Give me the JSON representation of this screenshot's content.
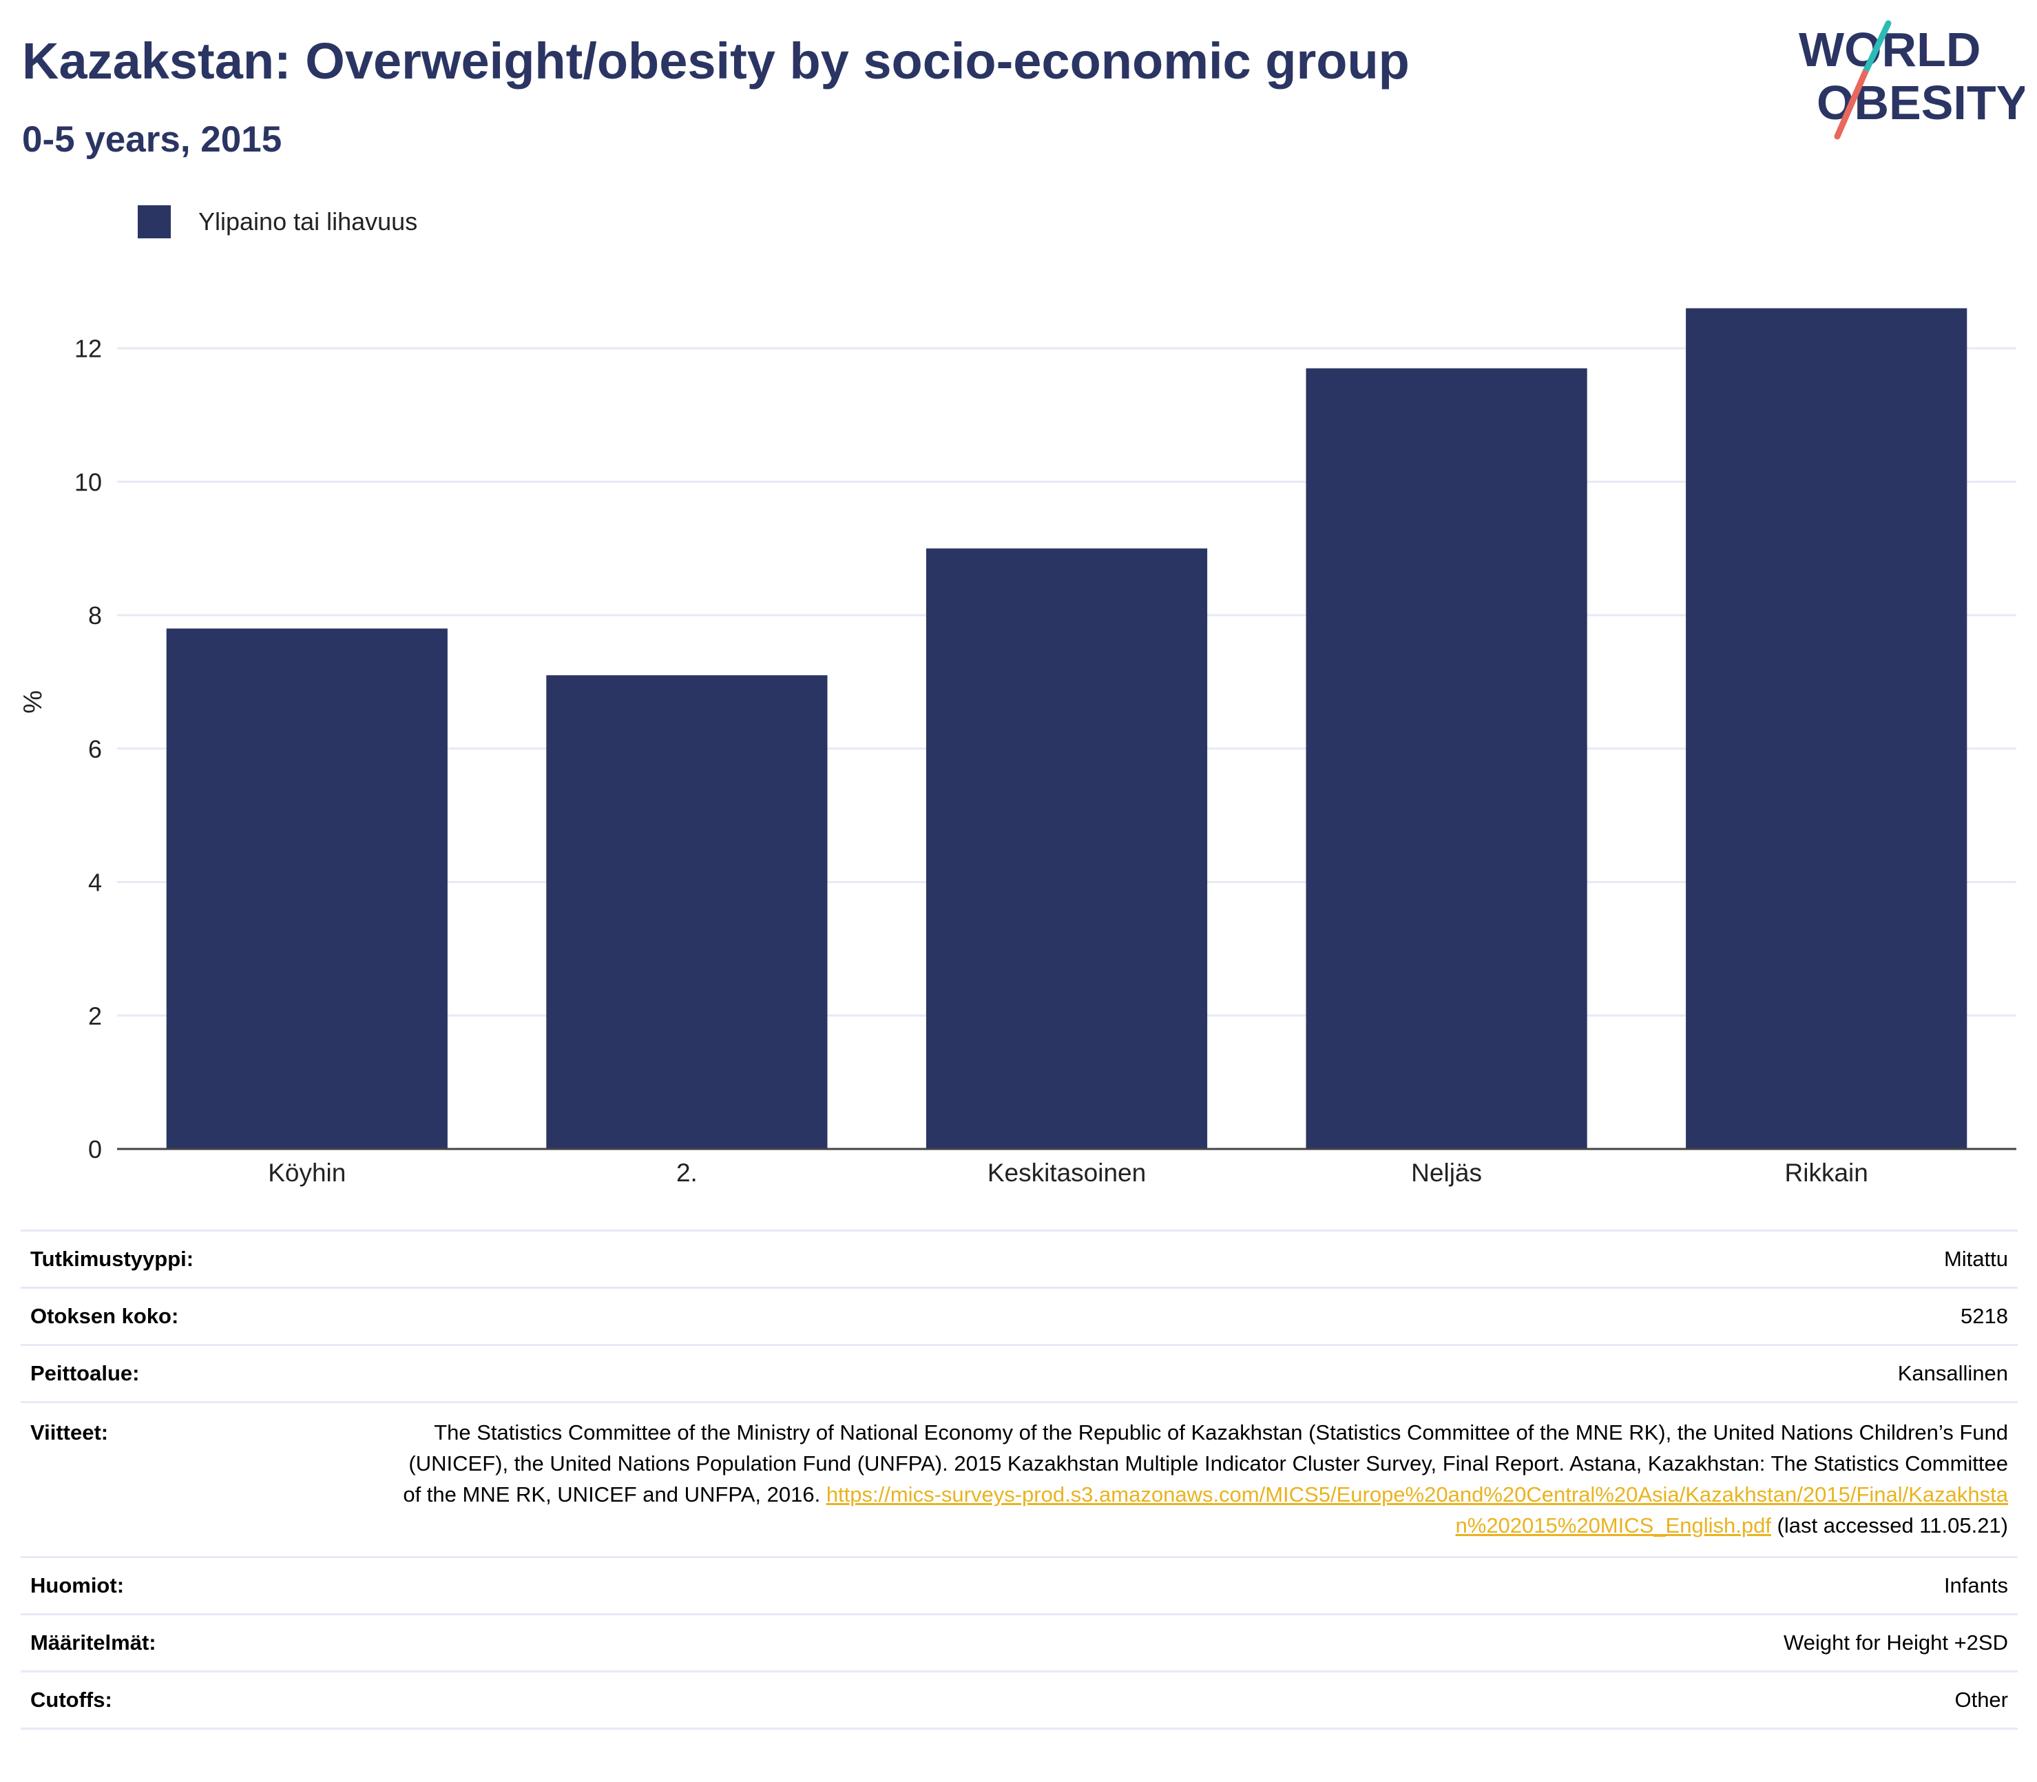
{
  "header": {
    "title": "Kazakstan: Overweight/obesity by socio-economic group",
    "subtitle": "0-5 years, 2015"
  },
  "logo": {
    "line1": "WORLD",
    "line2": "OBESITY",
    "text_color": "#2b3563",
    "slash_colors": [
      "#2dbbb6",
      "#e8685e"
    ]
  },
  "colors": {
    "bar": "#2b3563",
    "grid": "#e7e9f5",
    "axis": "#444444",
    "link": "#e9b320",
    "title": "#2b3563"
  },
  "chart_data": {
    "type": "bar",
    "categories": [
      "Köyhin",
      "2.",
      "Keskitasoinen",
      "Neljäs",
      "Rikkain"
    ],
    "series": [
      {
        "name": "Ylipaino tai lihavuus",
        "values": [
          7.8,
          7.1,
          9.0,
          11.7,
          12.6
        ]
      }
    ],
    "ylabel": "%",
    "xlabel": "",
    "ylim": [
      0,
      13.4
    ],
    "yticks": [
      0,
      2,
      4,
      6,
      8,
      10,
      12
    ],
    "grid": true,
    "legend": "top-left"
  },
  "info": {
    "rows": [
      {
        "label": "Tutkimustyyppi:",
        "value": "Mitattu"
      },
      {
        "label": "Otoksen koko:",
        "value": "5218"
      },
      {
        "label": "Peittoalue:",
        "value": "Kansallinen"
      },
      {
        "label": "Viitteet:",
        "value": "The Statistics Committee of the Ministry of National Economy of the Republic of Kazakhstan (Statistics Committee of the MNE RK), the United Nations Children’s Fund (UNICEF), the United Nations Population Fund (UNFPA). 2015 Kazakhstan Multiple Indicator Cluster Survey, Final Report. Astana, Kazakhstan: The Statistics Committee of the MNE RK, UNICEF and UNFPA, 2016. ",
        "link": "https://mics-surveys-prod.s3.amazonaws.com/MICS5/Europe%20and%20Central%20Asia/Kazakhstan/2015/Final/Kazakhstan%202015%20MICS_English.pdf",
        "suffix": " (last accessed 11.05.21)"
      },
      {
        "label": "Huomiot:",
        "value": "Infants"
      },
      {
        "label": "Määritelmät:",
        "value": "Weight for Height +2SD"
      },
      {
        "label": "Cutoffs:",
        "value": "Other"
      }
    ]
  }
}
